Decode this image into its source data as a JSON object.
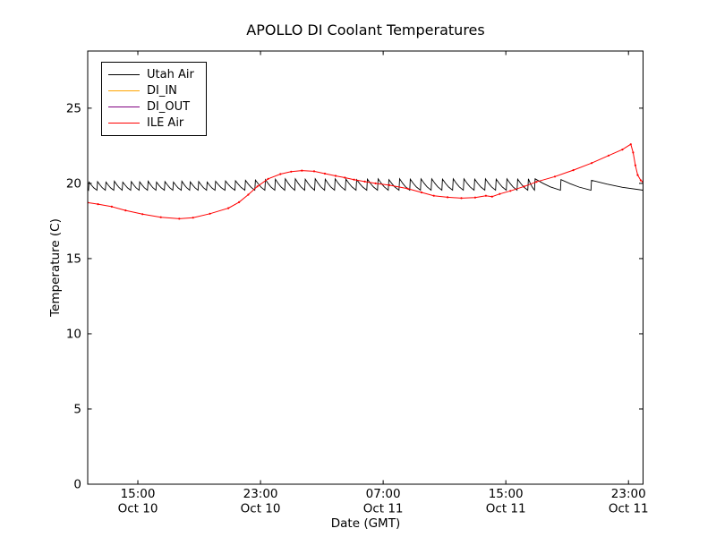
{
  "chart_data": {
    "type": "line",
    "title": "APOLLO DI Coolant Temperatures",
    "xlabel": "Date (GMT)",
    "ylabel": "Temperature (C)",
    "background": "#ffffff",
    "grid": false,
    "x_unit": "hours since Oct 10 00:00 GMT",
    "xlim": [
      11.73,
      47.95
    ],
    "ylim": [
      0,
      28.8
    ],
    "yticks": [
      0,
      5,
      10,
      15,
      20,
      25
    ],
    "xticks": [
      {
        "value": 15,
        "time": "15:00",
        "date": "Oct 10"
      },
      {
        "value": 23,
        "time": "23:00",
        "date": "Oct 10"
      },
      {
        "value": 31,
        "time": "07:00",
        "date": "Oct 11"
      },
      {
        "value": 39,
        "time": "15:00",
        "date": "Oct 11"
      },
      {
        "value": 47,
        "time": "23:00",
        "date": "Oct 11"
      }
    ],
    "legend": {
      "position": "upper left",
      "entries": [
        {
          "label": "Utah Air",
          "color": "#000000"
        },
        {
          "label": "DI_IN",
          "color": "#ffa500"
        },
        {
          "label": "DI_OUT",
          "color": "#800080"
        },
        {
          "label": "ILE Air",
          "color": "#ff0000"
        }
      ]
    },
    "series": [
      {
        "name": "Utah Air",
        "color": "#000000",
        "style": "sawtooth",
        "start": [
          11.73,
          19.62
        ],
        "trough": 19.55,
        "end_t": 47.95,
        "teeth": [
          [
            11.78,
            20.08
          ],
          [
            12.33,
            20.12
          ],
          [
            12.88,
            20.08
          ],
          [
            13.43,
            20.14
          ],
          [
            13.98,
            20.08
          ],
          [
            14.53,
            20.12
          ],
          [
            15.08,
            20.1
          ],
          [
            15.63,
            20.14
          ],
          [
            16.18,
            20.08
          ],
          [
            16.73,
            20.12
          ],
          [
            17.28,
            20.08
          ],
          [
            17.83,
            20.14
          ],
          [
            18.38,
            20.1
          ],
          [
            18.93,
            20.12
          ],
          [
            19.48,
            20.08
          ],
          [
            20.03,
            20.14
          ],
          [
            20.68,
            20.16
          ],
          [
            21.33,
            20.18
          ],
          [
            21.98,
            20.2
          ],
          [
            22.63,
            20.22
          ],
          [
            23.28,
            20.25
          ],
          [
            23.93,
            20.28
          ],
          [
            24.58,
            20.3
          ],
          [
            25.23,
            20.3
          ],
          [
            25.88,
            20.28
          ],
          [
            26.53,
            20.3
          ],
          [
            27.18,
            20.28
          ],
          [
            27.83,
            20.3
          ],
          [
            28.53,
            20.28
          ],
          [
            29.23,
            20.25
          ],
          [
            29.93,
            20.28
          ],
          [
            30.63,
            20.3
          ],
          [
            31.33,
            20.25
          ],
          [
            32.03,
            20.3
          ],
          [
            32.73,
            20.28
          ],
          [
            33.43,
            20.3
          ],
          [
            34.13,
            20.3
          ],
          [
            34.83,
            20.28
          ],
          [
            35.53,
            20.3
          ],
          [
            36.23,
            20.3
          ],
          [
            36.93,
            20.28
          ],
          [
            37.63,
            20.3
          ],
          [
            38.33,
            20.28
          ],
          [
            39.03,
            20.3
          ],
          [
            39.73,
            20.28
          ],
          [
            40.43,
            20.3
          ],
          [
            40.87,
            20.3
          ],
          [
            42.56,
            20.25
          ],
          [
            44.55,
            20.2
          ]
        ]
      },
      {
        "name": "DI_IN",
        "color": "#ffa500",
        "style": "flat",
        "value": 0,
        "opacity": 1
      },
      {
        "name": "DI_OUT",
        "color": "#800080",
        "style": "flat",
        "value": 0,
        "opacity": 0.75
      },
      {
        "name": "ILE Air",
        "color": "#ff0000",
        "style": "points",
        "markers": true,
        "points": [
          [
            11.73,
            18.72
          ],
          [
            12.4,
            18.62
          ],
          [
            13.3,
            18.45
          ],
          [
            14.2,
            18.2
          ],
          [
            15.3,
            17.95
          ],
          [
            16.5,
            17.75
          ],
          [
            17.7,
            17.65
          ],
          [
            18.6,
            17.72
          ],
          [
            19.7,
            17.98
          ],
          [
            20.9,
            18.35
          ],
          [
            21.6,
            18.75
          ],
          [
            22.2,
            19.25
          ],
          [
            22.8,
            19.8
          ],
          [
            23.5,
            20.3
          ],
          [
            24.3,
            20.62
          ],
          [
            25.0,
            20.78
          ],
          [
            25.7,
            20.85
          ],
          [
            26.5,
            20.8
          ],
          [
            27.2,
            20.65
          ],
          [
            27.9,
            20.5
          ],
          [
            28.5,
            20.38
          ],
          [
            29.1,
            20.25
          ],
          [
            29.8,
            20.12
          ],
          [
            30.5,
            20.0
          ],
          [
            31.4,
            19.88
          ],
          [
            32.6,
            19.65
          ],
          [
            33.5,
            19.4
          ],
          [
            34.3,
            19.18
          ],
          [
            35.2,
            19.08
          ],
          [
            36.1,
            19.02
          ],
          [
            37.0,
            19.06
          ],
          [
            37.7,
            19.18
          ],
          [
            38.1,
            19.12
          ],
          [
            38.6,
            19.3
          ],
          [
            39.3,
            19.5
          ],
          [
            40.2,
            19.8
          ],
          [
            41.0,
            20.1
          ],
          [
            42.2,
            20.45
          ],
          [
            43.4,
            20.88
          ],
          [
            44.6,
            21.35
          ],
          [
            45.7,
            21.85
          ],
          [
            46.6,
            22.25
          ],
          [
            47.15,
            22.6
          ],
          [
            47.3,
            22.05
          ],
          [
            47.45,
            21.2
          ],
          [
            47.6,
            20.55
          ],
          [
            47.8,
            20.2
          ],
          [
            47.95,
            20.1
          ]
        ]
      }
    ]
  }
}
